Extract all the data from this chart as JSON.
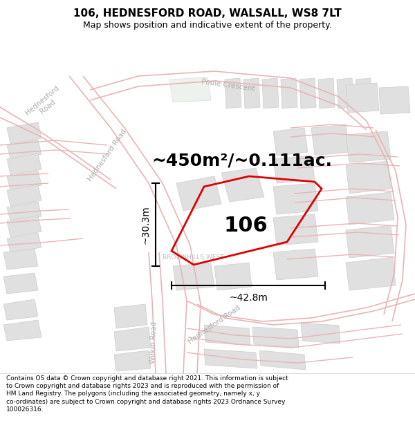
{
  "title": "106, HEDNESFORD ROAD, WALSALL, WS8 7LT",
  "subtitle": "Map shows position and indicative extent of the property.",
  "area_text": "~450m²/~0.111ac.",
  "label_106": "106",
  "dim_vertical": "~30.3m",
  "dim_horizontal": "~42.8m",
  "footer": "Contains OS data © Crown copyright and database right 2021. This information is subject to Crown copyright and database rights 2023 and is reproduced with the permission of HM Land Registry. The polygons (including the associated geometry, namely x, y co-ordinates) are subject to Crown copyright and database rights 2023 Ordnance Survey 100026316.",
  "map_bg": "#ffffff",
  "road_stroke": "#e8b4b4",
  "road_fill": "#ffffff",
  "block_face": "#e0e0e0",
  "block_edge": "#cccccc",
  "plot_color": "#dd0000",
  "street_color": "#aaaaaa",
  "fig_width": 6.0,
  "fig_height": 6.25,
  "title_fontsize": 11,
  "subtitle_fontsize": 9,
  "area_fontsize": 18,
  "label_fontsize": 22,
  "dim_fontsize": 10,
  "street_fontsize": 7.5,
  "footer_fontsize": 6.5
}
